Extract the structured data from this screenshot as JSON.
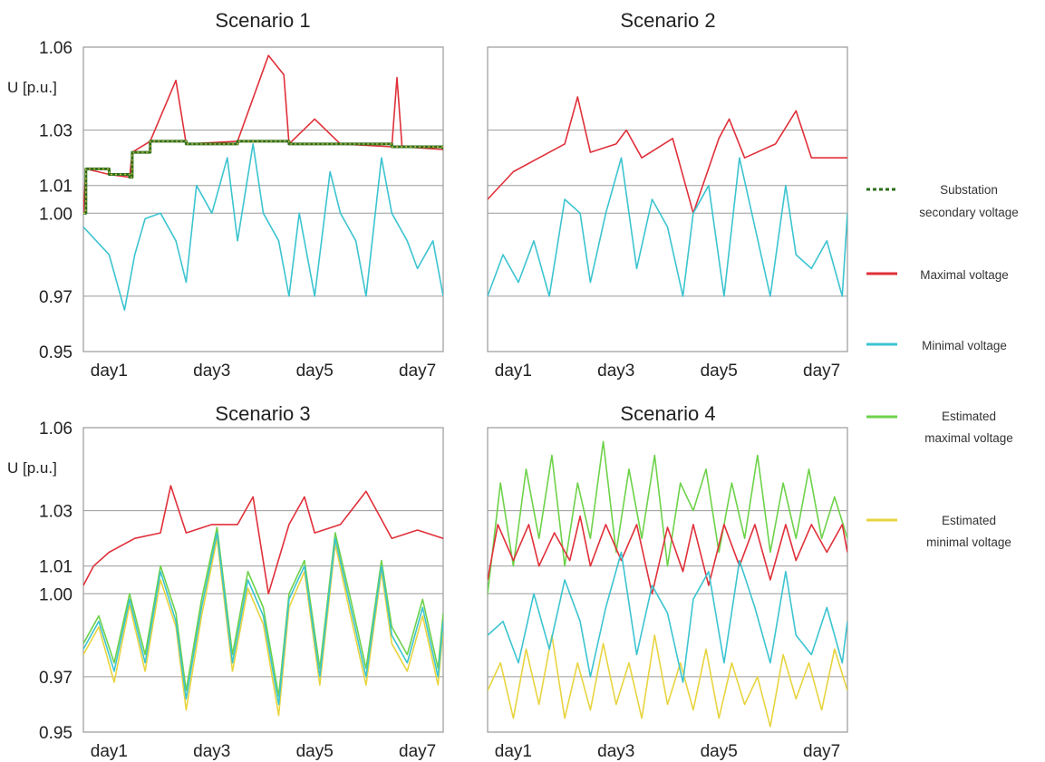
{
  "colors": {
    "substation": "#2e6e1e",
    "substation_dot": "#c8c040",
    "maximal": "#e0303a",
    "minimal": "#3cc4d0",
    "est_max": "#6ed24a",
    "est_min": "#e8d440",
    "grid": "#9a9a9a",
    "frame": "#999999"
  },
  "chart_data": [
    {
      "type": "line",
      "title": "Scenario 1",
      "ylabel": "U [p.u.]",
      "ylim": [
        0.95,
        1.06
      ],
      "xlim": [
        0,
        7
      ],
      "gridlines_y": [
        0.97,
        1.0,
        1.01,
        1.03
      ],
      "ytick_labels": [
        "0.95",
        "0.97",
        "1.00",
        "1.01",
        "1.03",
        "1.06"
      ],
      "yticks": [
        0.95,
        0.97,
        1.0,
        1.01,
        1.03,
        1.06
      ],
      "xticks": [
        0.5,
        2.5,
        4.5,
        6.5
      ],
      "xtick_labels": [
        "day1",
        "day3",
        "day5",
        "day7"
      ],
      "series": [
        {
          "key": "substation",
          "x": [
            0,
            0.05,
            0.5,
            0.9,
            0.95,
            1.3,
            2.0,
            3.0,
            4.0,
            5.0,
            6.0,
            7.0
          ],
          "y": [
            1.0,
            1.016,
            1.014,
            1.013,
            1.022,
            1.026,
            1.025,
            1.026,
            1.025,
            1.025,
            1.024,
            1.023
          ]
        },
        {
          "key": "maximal",
          "x": [
            0,
            0.05,
            0.5,
            0.9,
            0.95,
            1.3,
            1.8,
            2.0,
            3.0,
            3.6,
            3.9,
            4.0,
            4.5,
            5.0,
            6.0,
            6.1,
            6.2,
            7.0
          ],
          "y": [
            1.0,
            1.016,
            1.014,
            1.013,
            1.022,
            1.026,
            1.048,
            1.025,
            1.026,
            1.057,
            1.05,
            1.025,
            1.034,
            1.025,
            1.024,
            1.049,
            1.024,
            1.023
          ]
        },
        {
          "key": "minimal",
          "x": [
            0,
            0.5,
            0.8,
            1.0,
            1.2,
            1.5,
            1.8,
            2.0,
            2.2,
            2.5,
            2.8,
            3.0,
            3.3,
            3.5,
            3.8,
            4.0,
            4.2,
            4.5,
            4.8,
            5.0,
            5.3,
            5.5,
            5.8,
            6.0,
            6.3,
            6.5,
            6.8,
            7.0
          ],
          "y": [
            0.995,
            0.985,
            0.965,
            0.985,
            0.998,
            1.0,
            0.99,
            0.975,
            1.01,
            1.0,
            1.02,
            0.99,
            1.025,
            1.0,
            0.99,
            0.97,
            1.0,
            0.97,
            1.015,
            1.0,
            0.99,
            0.97,
            1.02,
            1.0,
            0.99,
            0.98,
            0.99,
            0.97
          ]
        }
      ]
    },
    {
      "type": "line",
      "title": "Scenario 2",
      "ylim": [
        0.95,
        1.06
      ],
      "xlim": [
        0,
        7
      ],
      "gridlines_y": [
        0.97,
        1.0,
        1.01,
        1.03
      ],
      "xticks": [
        0.5,
        2.5,
        4.5,
        6.5
      ],
      "xtick_labels": [
        "day1",
        "day3",
        "day5",
        "day7"
      ],
      "series": [
        {
          "key": "maximal",
          "x": [
            0,
            0.5,
            1.0,
            1.5,
            1.75,
            2.0,
            2.5,
            2.7,
            3.0,
            3.6,
            4.0,
            4.5,
            4.7,
            5.0,
            5.6,
            6.0,
            6.3,
            7.0
          ],
          "y": [
            1.005,
            1.015,
            1.02,
            1.025,
            1.042,
            1.022,
            1.025,
            1.03,
            1.02,
            1.027,
            1.0,
            1.027,
            1.034,
            1.02,
            1.025,
            1.037,
            1.02,
            1.02
          ]
        },
        {
          "key": "minimal",
          "x": [
            0,
            0.3,
            0.6,
            0.9,
            1.2,
            1.5,
            1.8,
            2.0,
            2.3,
            2.6,
            2.9,
            3.2,
            3.5,
            3.8,
            4.0,
            4.3,
            4.6,
            4.9,
            5.2,
            5.5,
            5.8,
            6.0,
            6.3,
            6.6,
            6.9,
            7.0
          ],
          "y": [
            0.97,
            0.985,
            0.975,
            0.99,
            0.97,
            1.005,
            1.0,
            0.975,
            1.0,
            1.02,
            0.98,
            1.005,
            0.995,
            0.97,
            1.0,
            1.01,
            0.97,
            1.02,
            0.995,
            0.97,
            1.01,
            0.985,
            0.98,
            0.99,
            0.97,
            1.0
          ]
        }
      ]
    },
    {
      "type": "line",
      "title": "Scenario 3",
      "ylabel": "U [p.u.]",
      "ylim": [
        0.95,
        1.06
      ],
      "xlim": [
        0,
        7
      ],
      "gridlines_y": [
        0.97,
        1.0,
        1.01,
        1.03
      ],
      "ytick_labels": [
        "0.95",
        "0.97",
        "1.00",
        "1.01",
        "1.03",
        "1.06"
      ],
      "yticks": [
        0.95,
        0.97,
        1.0,
        1.01,
        1.03,
        1.06
      ],
      "xticks": [
        0.5,
        2.5,
        4.5,
        6.5
      ],
      "xtick_labels": [
        "day1",
        "day3",
        "day5",
        "day7"
      ],
      "series": [
        {
          "key": "maximal",
          "x": [
            0,
            0.2,
            0.5,
            1.0,
            1.5,
            1.7,
            2.0,
            2.5,
            3.0,
            3.3,
            3.6,
            4.0,
            4.3,
            4.5,
            5.0,
            5.5,
            6.0,
            6.5,
            7.0
          ],
          "y": [
            1.003,
            1.01,
            1.015,
            1.02,
            1.022,
            1.039,
            1.022,
            1.025,
            1.025,
            1.035,
            1.0,
            1.025,
            1.035,
            1.022,
            1.025,
            1.037,
            1.02,
            1.023,
            1.02
          ]
        },
        {
          "key": "minimal",
          "x": [
            0,
            0.3,
            0.6,
            0.9,
            1.2,
            1.5,
            1.8,
            2.0,
            2.3,
            2.6,
            2.9,
            3.2,
            3.5,
            3.8,
            4.0,
            4.3,
            4.6,
            4.9,
            5.2,
            5.5,
            5.8,
            6.0,
            6.3,
            6.6,
            6.9,
            7.0
          ],
          "y": [
            0.98,
            0.99,
            0.972,
            0.998,
            0.975,
            1.008,
            0.99,
            0.962,
            0.995,
            1.022,
            0.975,
            1.005,
            0.992,
            0.96,
            0.998,
            1.01,
            0.97,
            1.02,
            0.995,
            0.97,
            1.01,
            0.985,
            0.975,
            0.995,
            0.97,
            0.99
          ]
        },
        {
          "key": "est_max",
          "x": [
            0,
            0.3,
            0.6,
            0.9,
            1.2,
            1.5,
            1.8,
            2.0,
            2.3,
            2.6,
            2.9,
            3.2,
            3.5,
            3.8,
            4.0,
            4.3,
            4.6,
            4.9,
            5.2,
            5.5,
            5.8,
            6.0,
            6.3,
            6.6,
            6.9,
            7.0
          ],
          "y": [
            0.982,
            0.992,
            0.975,
            1.0,
            0.978,
            1.01,
            0.993,
            0.965,
            0.998,
            1.024,
            0.978,
            1.008,
            0.995,
            0.963,
            1.0,
            1.012,
            0.973,
            1.022,
            0.998,
            0.973,
            1.012,
            0.988,
            0.978,
            0.998,
            0.973,
            0.993
          ]
        },
        {
          "key": "est_min",
          "x": [
            0,
            0.3,
            0.6,
            0.9,
            1.2,
            1.5,
            1.8,
            2.0,
            2.3,
            2.6,
            2.9,
            3.2,
            3.5,
            3.8,
            4.0,
            4.3,
            4.6,
            4.9,
            5.2,
            5.5,
            5.8,
            6.0,
            6.3,
            6.6,
            6.9,
            7.0
          ],
          "y": [
            0.978,
            0.988,
            0.968,
            0.996,
            0.972,
            1.005,
            0.988,
            0.958,
            0.992,
            1.02,
            0.972,
            1.002,
            0.989,
            0.956,
            0.995,
            1.008,
            0.967,
            1.018,
            0.992,
            0.967,
            1.008,
            0.982,
            0.972,
            0.992,
            0.967,
            0.987
          ]
        }
      ]
    },
    {
      "type": "line",
      "title": "Scenario 4",
      "ylim": [
        0.95,
        1.06
      ],
      "xlim": [
        0,
        7
      ],
      "gridlines_y": [
        0.97,
        1.0,
        1.01,
        1.03
      ],
      "xticks": [
        0.5,
        2.5,
        4.5,
        6.5
      ],
      "xtick_labels": [
        "day1",
        "day3",
        "day5",
        "day7"
      ],
      "series": [
        {
          "key": "est_max",
          "x": [
            0,
            0.25,
            0.5,
            0.75,
            1.0,
            1.25,
            1.5,
            1.75,
            2.0,
            2.25,
            2.5,
            2.75,
            3.0,
            3.25,
            3.5,
            3.75,
            4.0,
            4.25,
            4.5,
            4.75,
            5.0,
            5.25,
            5.5,
            5.75,
            6.0,
            6.25,
            6.5,
            6.75,
            7.0
          ],
          "y": [
            1.0,
            1.04,
            1.01,
            1.045,
            1.02,
            1.05,
            1.01,
            1.04,
            1.02,
            1.055,
            1.015,
            1.045,
            1.02,
            1.05,
            1.01,
            1.04,
            1.03,
            1.045,
            1.015,
            1.04,
            1.02,
            1.05,
            1.015,
            1.04,
            1.02,
            1.045,
            1.02,
            1.035,
            1.02
          ]
        },
        {
          "key": "maximal",
          "x": [
            0,
            0.2,
            0.5,
            0.8,
            1.0,
            1.3,
            1.6,
            1.8,
            2.0,
            2.3,
            2.6,
            2.9,
            3.2,
            3.5,
            3.8,
            4.0,
            4.3,
            4.6,
            4.9,
            5.2,
            5.5,
            5.8,
            6.0,
            6.3,
            6.6,
            6.9,
            7.0
          ],
          "y": [
            1.005,
            1.025,
            1.012,
            1.025,
            1.01,
            1.022,
            1.012,
            1.028,
            1.01,
            1.025,
            1.012,
            1.025,
            1.0,
            1.024,
            1.008,
            1.025,
            1.003,
            1.025,
            1.01,
            1.025,
            1.005,
            1.025,
            1.012,
            1.025,
            1.015,
            1.025,
            1.015
          ]
        },
        {
          "key": "est_min",
          "x": [
            0,
            0.25,
            0.5,
            0.75,
            1.0,
            1.25,
            1.5,
            1.75,
            2.0,
            2.25,
            2.5,
            2.75,
            3.0,
            3.25,
            3.5,
            3.75,
            4.0,
            4.25,
            4.5,
            4.75,
            5.0,
            5.25,
            5.5,
            5.75,
            6.0,
            6.25,
            6.5,
            6.75,
            7.0
          ],
          "y": [
            0.965,
            0.975,
            0.955,
            0.98,
            0.96,
            0.985,
            0.955,
            0.975,
            0.958,
            0.982,
            0.96,
            0.975,
            0.955,
            0.985,
            0.96,
            0.975,
            0.958,
            0.98,
            0.955,
            0.975,
            0.96,
            0.97,
            0.952,
            0.978,
            0.962,
            0.975,
            0.958,
            0.98,
            0.965
          ]
        },
        {
          "key": "minimal",
          "x": [
            0,
            0.3,
            0.6,
            0.9,
            1.2,
            1.5,
            1.8,
            2.0,
            2.3,
            2.6,
            2.9,
            3.2,
            3.5,
            3.8,
            4.0,
            4.3,
            4.6,
            4.9,
            5.2,
            5.5,
            5.8,
            6.0,
            6.3,
            6.6,
            6.9,
            7.0
          ],
          "y": [
            0.985,
            0.99,
            0.975,
            1.0,
            0.98,
            1.005,
            0.99,
            0.97,
            0.995,
            1.015,
            0.978,
            1.003,
            0.993,
            0.968,
            0.998,
            1.008,
            0.975,
            1.012,
            0.995,
            0.975,
            1.008,
            0.985,
            0.978,
            0.995,
            0.975,
            0.99
          ]
        }
      ]
    }
  ],
  "legend": [
    {
      "key": "substation",
      "label_lines": [
        "Substation",
        "secondary voltage"
      ],
      "style": "dotted"
    },
    {
      "key": "maximal",
      "label_lines": [
        "Maximal voltage"
      ],
      "style": "solid"
    },
    {
      "key": "minimal",
      "label_lines": [
        "Minimal voltage"
      ],
      "style": "solid"
    },
    {
      "key": "est_max",
      "label_lines": [
        "Estimated",
        "maximal voltage"
      ],
      "style": "solid"
    },
    {
      "key": "est_min",
      "label_lines": [
        "Estimated",
        "minimal voltage"
      ],
      "style": "solid"
    }
  ]
}
